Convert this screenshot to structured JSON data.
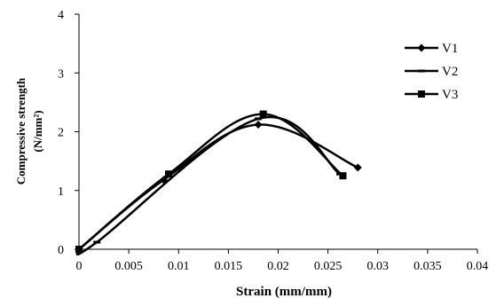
{
  "chart_data": {
    "type": "line",
    "xlabel": "Strain  (mm/mm)",
    "ylabel_line1": "Compressive  strength",
    "ylabel_line2": "(N/mm²)",
    "xlim": [
      0,
      0.04
    ],
    "ylim": [
      0,
      4
    ],
    "x_ticks": [
      "0",
      "0.005",
      "0.01",
      "0.015",
      "0.02",
      "0.025",
      "0.03",
      "0.035",
      "0.04"
    ],
    "y_ticks": [
      "0",
      "1",
      "2",
      "3",
      "4"
    ],
    "grid": false,
    "legend_position": "top-right",
    "series": [
      {
        "name": "V1",
        "marker": "diamond",
        "x": [
          0,
          0.0085,
          0.018,
          0.028
        ],
        "y": [
          0,
          1.18,
          2.12,
          1.39
        ]
      },
      {
        "name": "V2",
        "marker": "dash",
        "x": [
          0,
          0.0018,
          0.018,
          0.0262
        ],
        "y": [
          0,
          0.12,
          2.22,
          1.28
        ]
      },
      {
        "name": "V3",
        "marker": "square",
        "x": [
          0,
          0.009,
          0.0185,
          0.0265
        ],
        "y": [
          0,
          1.28,
          2.3,
          1.25
        ]
      }
    ]
  }
}
